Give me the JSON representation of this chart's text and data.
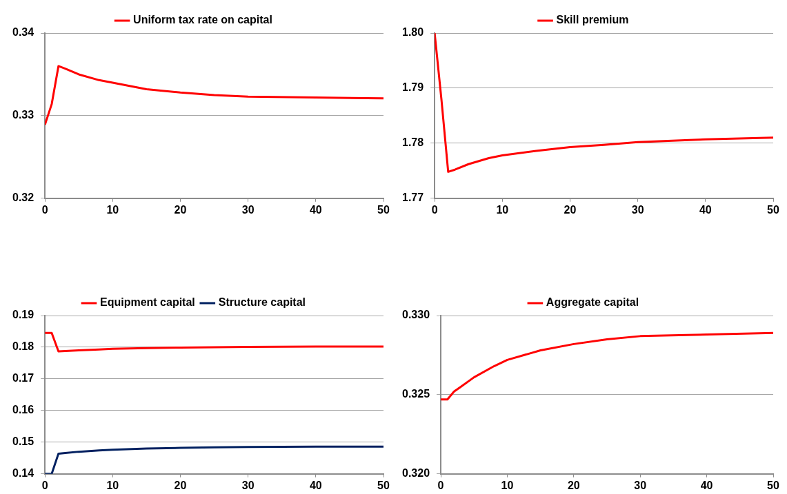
{
  "chart_data": [
    {
      "type": "line",
      "x": [
        0,
        1,
        2,
        3,
        5,
        8,
        10,
        15,
        20,
        25,
        30,
        40,
        50
      ],
      "xlim": [
        0,
        50
      ],
      "xticks": [
        0,
        10,
        20,
        30,
        40,
        50
      ],
      "ylim": [
        0.32,
        0.34
      ],
      "yticks": [
        0.32,
        0.33,
        0.34
      ],
      "grid": "y",
      "legend": "top",
      "marker": "none",
      "line_style": "solid",
      "series": [
        {
          "name": "Uniform tax rate on capital",
          "color": "#ff0000",
          "values": [
            0.3289,
            0.3314,
            0.336,
            0.3357,
            0.335,
            0.3343,
            0.334,
            0.3332,
            0.3328,
            0.3325,
            0.3323,
            0.3322,
            0.3321
          ]
        }
      ]
    },
    {
      "type": "line",
      "x": [
        0,
        1,
        2,
        3,
        5,
        8,
        10,
        15,
        20,
        25,
        30,
        40,
        50
      ],
      "xlim": [
        0,
        50
      ],
      "xticks": [
        0,
        10,
        20,
        30,
        40,
        50
      ],
      "ylim": [
        1.77,
        1.8
      ],
      "yticks": [
        {
          "value": 1.77,
          "label": "1.77"
        },
        {
          "value": 1.78,
          "label": "1.78"
        },
        {
          "value": 1.79,
          "label": "1.79"
        },
        {
          "value": 1.8,
          "label": "1.80"
        }
      ],
      "grid": "y",
      "legend": "top",
      "marker": "none",
      "line_style": "solid",
      "series": [
        {
          "name": "Skill premium",
          "color": "#ff0000",
          "values": [
            1.8,
            1.788,
            1.7748,
            1.7752,
            1.7762,
            1.7773,
            1.7778,
            1.7786,
            1.7793,
            1.7797,
            1.7802,
            1.7807,
            1.781
          ]
        }
      ]
    },
    {
      "type": "line",
      "x": [
        0,
        1,
        2,
        3,
        5,
        8,
        10,
        15,
        20,
        25,
        30,
        40,
        50
      ],
      "xlim": [
        0,
        50
      ],
      "xticks": [
        0,
        10,
        20,
        30,
        40,
        50
      ],
      "ylim": [
        0.14,
        0.19
      ],
      "yticks": [
        0.14,
        0.15,
        0.16,
        0.17,
        0.18,
        0.19
      ],
      "grid": "y",
      "legend": "top",
      "marker": "none",
      "line_style": "solid",
      "series": [
        {
          "name": "Equipment capital",
          "color": "#ff0000",
          "values": [
            0.1845,
            0.1845,
            0.1787,
            0.1788,
            0.179,
            0.1793,
            0.1795,
            0.1797,
            0.1799,
            0.18,
            0.1801,
            0.1802,
            0.1802
          ]
        },
        {
          "name": "Structure capital",
          "color": "#002060",
          "values": [
            0.14,
            0.14,
            0.1464,
            0.1466,
            0.147,
            0.1474,
            0.1476,
            0.148,
            0.1482,
            0.1484,
            0.1485,
            0.1486,
            0.1486
          ]
        }
      ]
    },
    {
      "type": "line",
      "x": [
        0,
        1,
        2,
        3,
        5,
        8,
        10,
        15,
        20,
        25,
        30,
        40,
        50
      ],
      "xlim": [
        0,
        50
      ],
      "xticks": [
        0,
        10,
        20,
        30,
        40,
        50
      ],
      "ylim": [
        0.32,
        0.33
      ],
      "yticks": [
        {
          "value": 0.32,
          "label": "0.320"
        },
        {
          "value": 0.325,
          "label": "0.325"
        },
        {
          "value": 0.33,
          "label": "0.330"
        }
      ],
      "grid": "y",
      "legend": "top",
      "marker": "none",
      "line_style": "solid",
      "series": [
        {
          "name": "Aggregate capital",
          "color": "#ff0000",
          "values": [
            0.3247,
            0.3247,
            0.3252,
            0.3255,
            0.3261,
            0.3268,
            0.3272,
            0.3278,
            0.3282,
            0.3285,
            0.3287,
            0.3288,
            0.3289
          ]
        }
      ]
    }
  ]
}
